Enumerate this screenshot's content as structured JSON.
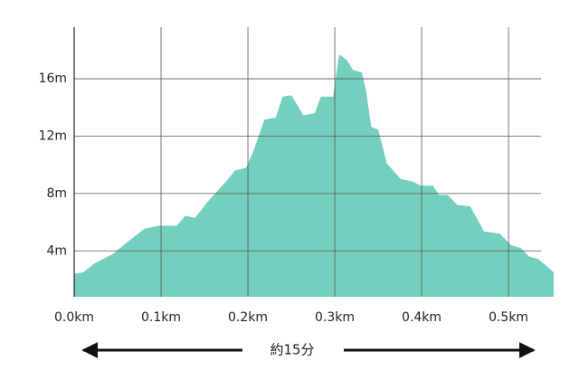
{
  "chart_data": {
    "type": "area",
    "x": [
      0,
      0.0104,
      0.024,
      0.045,
      0.06,
      0.081,
      0.097,
      0.118,
      0.128,
      0.139,
      0.154,
      0.175,
      0.185,
      0.198,
      0.206,
      0.219,
      0.232,
      0.24,
      0.25,
      0.264,
      0.277,
      0.284,
      0.298,
      0.305,
      0.314,
      0.321,
      0.331,
      0.336,
      0.342,
      0.35,
      0.36,
      0.376,
      0.389,
      0.399,
      0.413,
      0.42,
      0.43,
      0.441,
      0.456,
      0.472,
      0.49,
      0.503,
      0.514,
      0.524,
      0.534,
      0.552
    ],
    "values": [
      2.4,
      2.5,
      3.15,
      3.8,
      4.55,
      5.55,
      5.75,
      5.75,
      6.45,
      6.3,
      7.45,
      8.85,
      9.6,
      9.8,
      10.9,
      13.15,
      13.3,
      14.75,
      14.85,
      13.45,
      13.6,
      14.75,
      14.75,
      17.7,
      17.3,
      16.6,
      16.45,
      15.2,
      12.65,
      12.45,
      10.1,
      9.0,
      8.85,
      8.55,
      8.55,
      7.9,
      7.9,
      7.2,
      7.1,
      5.35,
      5.2,
      4.4,
      4.2,
      3.6,
      3.45,
      2.5
    ],
    "color": "#74cfbe",
    "xlim": [
      0,
      0.552
    ],
    "ylim": [
      0.8,
      19.6
    ],
    "xticks": [
      {
        "value": 0,
        "label": "0.0km"
      },
      {
        "value": 0.1,
        "label": "0.1km"
      },
      {
        "value": 0.2,
        "label": "0.2km"
      },
      {
        "value": 0.3,
        "label": "0.3km"
      },
      {
        "value": 0.4,
        "label": "0.4km"
      },
      {
        "value": 0.5,
        "label": "0.5km"
      }
    ],
    "yticks": [
      {
        "value": 4,
        "label": "4m"
      },
      {
        "value": 8,
        "label": "8m"
      },
      {
        "value": 12,
        "label": "12m"
      },
      {
        "value": 16,
        "label": "16m"
      }
    ],
    "grid": true,
    "annotation": "約15分"
  }
}
